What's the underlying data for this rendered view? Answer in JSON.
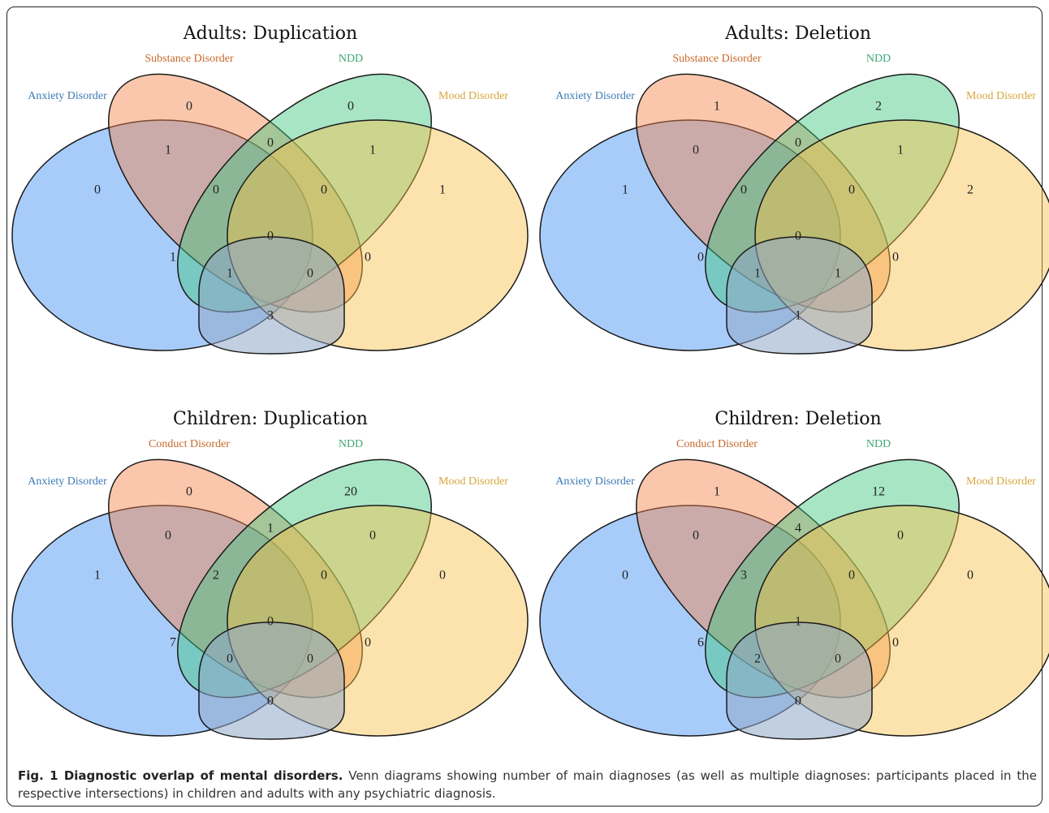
{
  "colors": {
    "anxiety": "#3d8ef5",
    "substance": "#f5824a",
    "ndd": "#3fc67e",
    "mood": "#f8c04a",
    "anxiety_label": "#3a7ab5",
    "substance_label": "#c7682a",
    "ndd_label": "#3ea77a",
    "mood_label": "#d9a43a"
  },
  "diagrams": [
    {
      "title": "Adults: Duplication",
      "labels": {
        "a": "Anxiety Disorder",
        "b": "Substance Disorder",
        "c": "NDD",
        "d": "Mood Disorder"
      },
      "counts": {
        "a": "0",
        "b": "0",
        "c": "0",
        "d": "1",
        "ab": "1",
        "bc": "0",
        "cd": "1",
        "abc": "0",
        "bcd": "0",
        "abcd": "0",
        "ac": "1",
        "bd": "0",
        "acd": "1",
        "abd": "0",
        "ad": "3"
      }
    },
    {
      "title": "Adults: Deletion",
      "labels": {
        "a": "Anxiety Disorder",
        "b": "Substance Disorder",
        "c": "NDD",
        "d": "Mood Disorder"
      },
      "counts": {
        "a": "1",
        "b": "1",
        "c": "2",
        "d": "2",
        "ab": "0",
        "bc": "0",
        "cd": "1",
        "abc": "0",
        "bcd": "0",
        "abcd": "0",
        "ac": "0",
        "bd": "0",
        "acd": "1",
        "abd": "1",
        "ad": "1"
      }
    },
    {
      "title": "Children: Duplication",
      "labels": {
        "a": "Anxiety Disorder",
        "b": "Conduct Disorder",
        "c": "NDD",
        "d": "Mood Disorder"
      },
      "counts": {
        "a": "1",
        "b": "0",
        "c": "20",
        "d": "0",
        "ab": "0",
        "bc": "1",
        "cd": "0",
        "abc": "2",
        "bcd": "0",
        "abcd": "0",
        "ac": "7",
        "bd": "0",
        "acd": "0",
        "abd": "0",
        "ad": "0"
      }
    },
    {
      "title": "Children: Deletion",
      "labels": {
        "a": "Anxiety Disorder",
        "b": "Conduct Disorder",
        "c": "NDD",
        "d": "Mood Disorder"
      },
      "counts": {
        "a": "0",
        "b": "1",
        "c": "12",
        "d": "0",
        "ab": "0",
        "bc": "4",
        "cd": "0",
        "abc": "3",
        "bcd": "0",
        "abcd": "1",
        "ac": "6",
        "bd": "0",
        "acd": "2",
        "abd": "0",
        "ad": "0"
      }
    }
  ],
  "caption": {
    "lead": "Fig. 1 Diagnostic overlap of mental disorders.",
    "text": " Venn diagrams showing number of main diagnoses (as well as multiple diagnoses: participants placed in the respective intersections) in children and adults with any psychiatric diagnosis."
  }
}
